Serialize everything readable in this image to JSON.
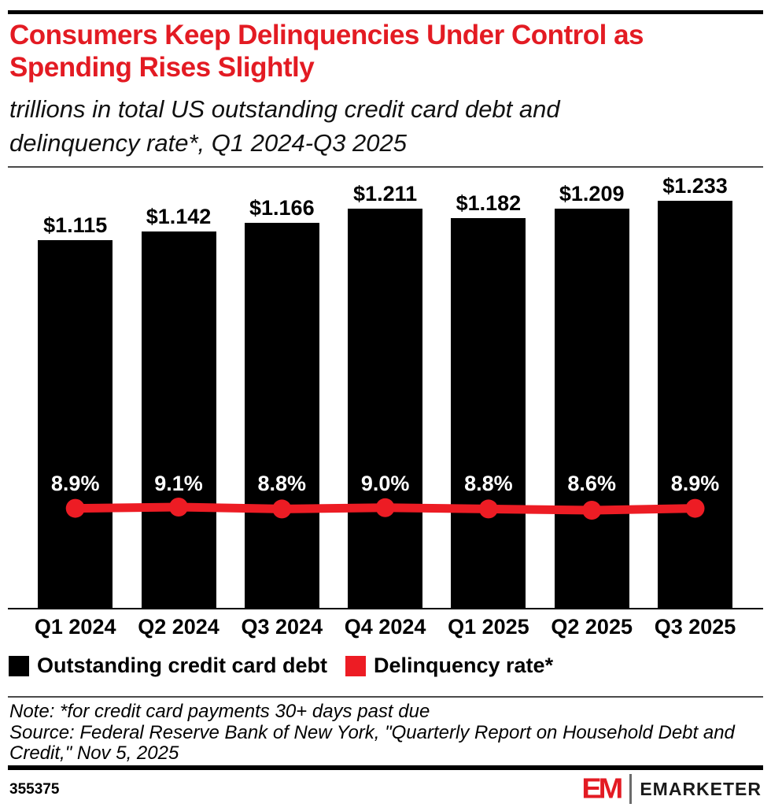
{
  "colors": {
    "brand_red": "#e31b23",
    "accent_red": "#ed1c24",
    "bar_black": "#000000",
    "background": "#ffffff"
  },
  "header": {
    "title": "Consumers Keep Delinquencies Under Control as Spending Rises Slightly",
    "title_lines": [
      "Consumers Keep Delinquencies Under Control as",
      "Spending Rises Slightly"
    ],
    "subtitle": "trillions in total US outstanding credit card debt and delinquency rate*, Q1 2024-Q3 2025",
    "subtitle_lines": [
      "trillions in total US outstanding credit card debt and",
      "delinquency rate*, Q1 2024-Q3 2025"
    ]
  },
  "chart_data": {
    "type": "bar",
    "subtype": "bar-line-combo",
    "title": "Consumers Keep Delinquencies Under Control as Spending Rises Slightly",
    "subtitle": "trillions in total US outstanding credit card debt and delinquency rate*, Q1 2024-Q3 2025",
    "categories": [
      "Q1 2024",
      "Q2 2024",
      "Q3 2024",
      "Q4 2024",
      "Q1 2025",
      "Q2 2025",
      "Q3 2025"
    ],
    "series": [
      {
        "name": "Outstanding credit card debt",
        "type": "bar",
        "unit": "trillions USD",
        "color": "#000000",
        "values": [
          1.115,
          1.142,
          1.166,
          1.211,
          1.182,
          1.209,
          1.233
        ],
        "labels": [
          "$1.115",
          "$1.142",
          "$1.166",
          "$1.211",
          "$1.182",
          "$1.209",
          "$1.233"
        ]
      },
      {
        "name": "Delinquency rate*",
        "type": "line",
        "unit": "%",
        "color": "#ed1c24",
        "values": [
          8.9,
          9.1,
          8.8,
          9.0,
          8.8,
          8.6,
          8.9
        ],
        "labels": [
          "8.9%",
          "9.1%",
          "8.8%",
          "9.0%",
          "8.8%",
          "8.6%",
          "8.9%"
        ]
      }
    ],
    "xlabel": "",
    "ylabel": "",
    "grid": false,
    "legend_position": "bottom-left"
  },
  "legend": {
    "items": [
      {
        "label": "Outstanding credit card debt",
        "color": "#000000"
      },
      {
        "label": "Delinquency rate*",
        "color": "#ed1c24"
      }
    ]
  },
  "notes": {
    "note_line": "Note: *for credit card payments 30+ days past due",
    "source_lines": [
      "Source: Federal Reserve Bank of New York, \"Quarterly Report on Household Debt and",
      "Credit,\" Nov 5, 2025"
    ]
  },
  "footer": {
    "chart_id": "355375",
    "brand_mark": "EM",
    "brand_name": "EMARKETER"
  }
}
